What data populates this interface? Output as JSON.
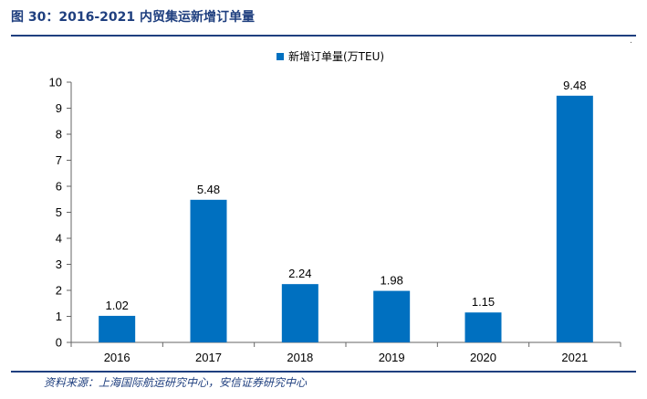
{
  "figure": {
    "title": "图 30：2016-2021 内贸集运新增订单量",
    "source": "资料来源：上海国际航运研究中心，安信证券研究中心",
    "corner_mark": "."
  },
  "colors": {
    "bar": "#0070c0",
    "title": "#1f3f7f",
    "axis": "#666666",
    "text": "#000000"
  },
  "chart_data": {
    "type": "bar",
    "title": "",
    "xlabel": "",
    "ylabel": "",
    "categories": [
      "2016",
      "2017",
      "2018",
      "2019",
      "2020",
      "2021"
    ],
    "series": [
      {
        "name": "新增订单量(万TEU)",
        "values": [
          1.02,
          5.48,
          2.24,
          1.98,
          1.15,
          9.48
        ],
        "labels": [
          "1.02",
          "5.48",
          "2.24",
          "1.98",
          "1.15",
          "9.48"
        ]
      }
    ],
    "ylim": [
      0,
      10
    ],
    "yticks": [
      "0",
      "1",
      "2",
      "3",
      "4",
      "5",
      "6",
      "7",
      "8",
      "9",
      "10"
    ],
    "grid": false,
    "legend": "top-center"
  }
}
